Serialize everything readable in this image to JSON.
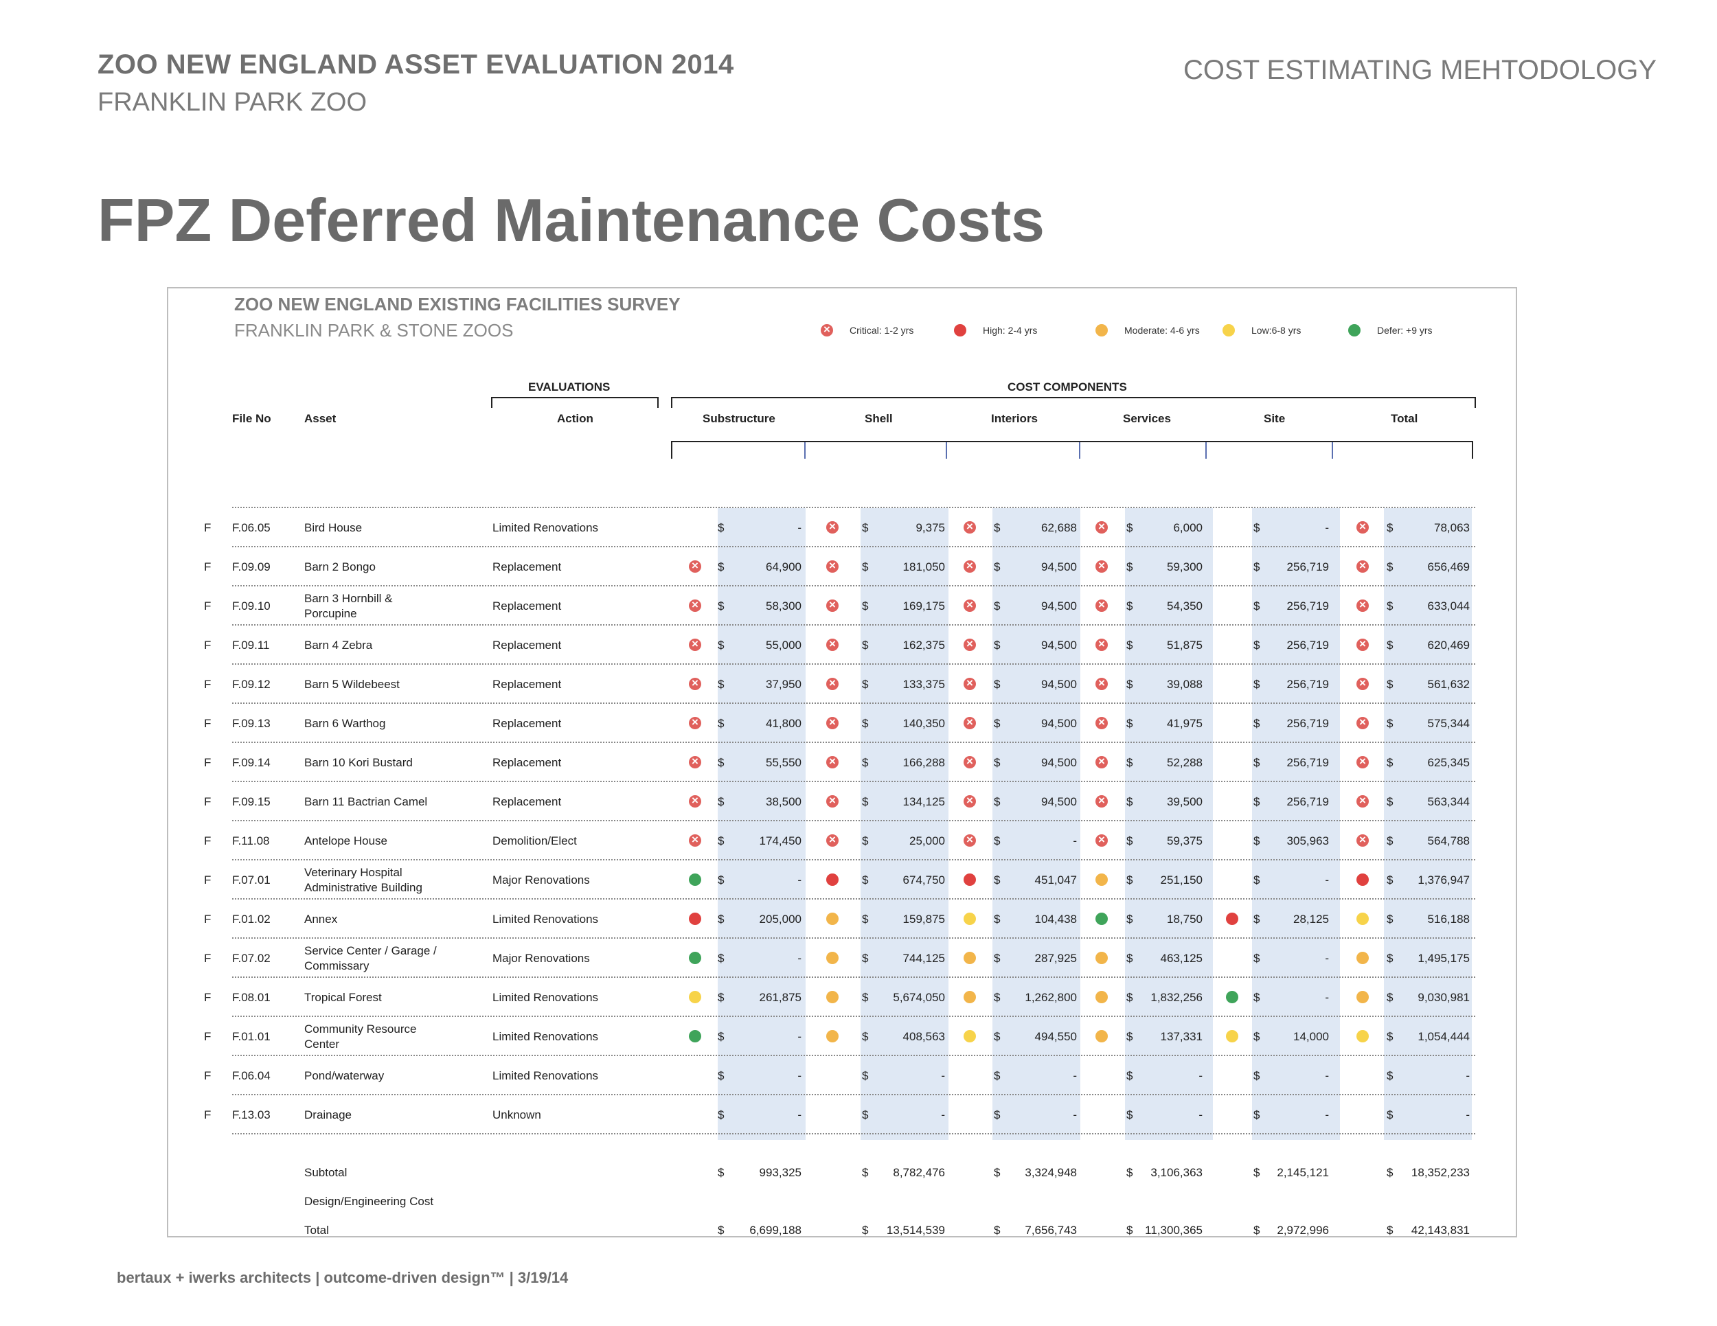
{
  "header": {
    "title": "ZOO NEW ENGLAND ASSET EVALUATION 2014",
    "subtitle": "FRANKLIN PARK ZOO",
    "right": "COST ESTIMATING MEHTODOLOGY"
  },
  "page_title": "FPZ Deferred Maintenance Costs",
  "survey": {
    "title": "ZOO NEW ENGLAND EXISTING FACILITIES SURVEY",
    "subtitle": "FRANKLIN PARK & STONE ZOOS"
  },
  "legend": [
    {
      "status": "critical",
      "label": "Critical: 1-2 yrs"
    },
    {
      "status": "high",
      "label": "High: 2-4 yrs"
    },
    {
      "status": "moderate",
      "label": "Moderate: 4-6 yrs"
    },
    {
      "status": "low",
      "label": "Low:6-8 yrs"
    },
    {
      "status": "defer",
      "label": "Defer: +9 yrs"
    }
  ],
  "groups": {
    "evaluations": "EVALUATIONS",
    "cost_components": "COST COMPONENTS"
  },
  "columns": {
    "file_no": "File No",
    "asset": "Asset",
    "action": "Action",
    "substructure": "Substructure",
    "shell": "Shell",
    "interiors": "Interiors",
    "services": "Services",
    "site": "Site",
    "total": "Total"
  },
  "currency": "$",
  "rows": [
    {
      "flag": "F",
      "file": "F.06.05",
      "asset": "Bird House",
      "action": "Limited Renovations",
      "sub": {
        "s": "",
        "v": "-"
      },
      "shell": {
        "s": "critical",
        "v": "9,375"
      },
      "int": {
        "s": "critical",
        "v": "62,688"
      },
      "svc": {
        "s": "critical",
        "v": "6,000"
      },
      "site": {
        "s": "",
        "v": "-"
      },
      "tot": {
        "s": "critical",
        "v": "78,063"
      }
    },
    {
      "flag": "F",
      "file": "F.09.09",
      "asset": "Barn 2 Bongo",
      "action": "Replacement",
      "sub": {
        "s": "critical",
        "v": "64,900"
      },
      "shell": {
        "s": "critical",
        "v": "181,050"
      },
      "int": {
        "s": "critical",
        "v": "94,500"
      },
      "svc": {
        "s": "critical",
        "v": "59,300"
      },
      "site": {
        "s": "",
        "v": "256,719"
      },
      "tot": {
        "s": "critical",
        "v": "656,469"
      }
    },
    {
      "flag": "F",
      "file": "F.09.10",
      "asset": "Barn 3 Hornbill & Porcupine",
      "action": "Replacement",
      "sub": {
        "s": "critical",
        "v": "58,300"
      },
      "shell": {
        "s": "critical",
        "v": "169,175"
      },
      "int": {
        "s": "critical",
        "v": "94,500"
      },
      "svc": {
        "s": "critical",
        "v": "54,350"
      },
      "site": {
        "s": "",
        "v": "256,719"
      },
      "tot": {
        "s": "critical",
        "v": "633,044"
      }
    },
    {
      "flag": "F",
      "file": "F.09.11",
      "asset": "Barn 4 Zebra",
      "action": "Replacement",
      "sub": {
        "s": "critical",
        "v": "55,000"
      },
      "shell": {
        "s": "critical",
        "v": "162,375"
      },
      "int": {
        "s": "critical",
        "v": "94,500"
      },
      "svc": {
        "s": "critical",
        "v": "51,875"
      },
      "site": {
        "s": "",
        "v": "256,719"
      },
      "tot": {
        "s": "critical",
        "v": "620,469"
      }
    },
    {
      "flag": "F",
      "file": "F.09.12",
      "asset": "Barn 5 Wildebeest",
      "action": "Replacement",
      "sub": {
        "s": "critical",
        "v": "37,950"
      },
      "shell": {
        "s": "critical",
        "v": "133,375"
      },
      "int": {
        "s": "critical",
        "v": "94,500"
      },
      "svc": {
        "s": "critical",
        "v": "39,088"
      },
      "site": {
        "s": "",
        "v": "256,719"
      },
      "tot": {
        "s": "critical",
        "v": "561,632"
      }
    },
    {
      "flag": "F",
      "file": "F.09.13",
      "asset": "Barn 6 Warthog",
      "action": "Replacement",
      "sub": {
        "s": "critical",
        "v": "41,800"
      },
      "shell": {
        "s": "critical",
        "v": "140,350"
      },
      "int": {
        "s": "critical",
        "v": "94,500"
      },
      "svc": {
        "s": "critical",
        "v": "41,975"
      },
      "site": {
        "s": "",
        "v": "256,719"
      },
      "tot": {
        "s": "critical",
        "v": "575,344"
      }
    },
    {
      "flag": "F",
      "file": "F.09.14",
      "asset": "Barn 10 Kori Bustard",
      "action": "Replacement",
      "sub": {
        "s": "critical",
        "v": "55,550"
      },
      "shell": {
        "s": "critical",
        "v": "166,288"
      },
      "int": {
        "s": "critical",
        "v": "94,500"
      },
      "svc": {
        "s": "critical",
        "v": "52,288"
      },
      "site": {
        "s": "",
        "v": "256,719"
      },
      "tot": {
        "s": "critical",
        "v": "625,345"
      }
    },
    {
      "flag": "F",
      "file": "F.09.15",
      "asset": "Barn 11 Bactrian Camel",
      "action": "Replacement",
      "sub": {
        "s": "critical",
        "v": "38,500"
      },
      "shell": {
        "s": "critical",
        "v": "134,125"
      },
      "int": {
        "s": "critical",
        "v": "94,500"
      },
      "svc": {
        "s": "critical",
        "v": "39,500"
      },
      "site": {
        "s": "",
        "v": "256,719"
      },
      "tot": {
        "s": "critical",
        "v": "563,344"
      }
    },
    {
      "flag": "F",
      "file": "F.11.08",
      "asset": "Antelope House",
      "action": "Demolition/Elect",
      "sub": {
        "s": "critical",
        "v": "174,450"
      },
      "shell": {
        "s": "critical",
        "v": "25,000"
      },
      "int": {
        "s": "critical",
        "v": "-"
      },
      "svc": {
        "s": "critical",
        "v": "59,375"
      },
      "site": {
        "s": "",
        "v": "305,963"
      },
      "tot": {
        "s": "critical",
        "v": "564,788"
      }
    },
    {
      "flag": "F",
      "file": "F.07.01",
      "asset": "Veterinary Hospital Administrative Building",
      "action": "Major Renovations",
      "sub": {
        "s": "defer",
        "v": "-"
      },
      "shell": {
        "s": "high",
        "v": "674,750"
      },
      "int": {
        "s": "high",
        "v": "451,047"
      },
      "svc": {
        "s": "moderate",
        "v": "251,150"
      },
      "site": {
        "s": "",
        "v": "-"
      },
      "tot": {
        "s": "high",
        "v": "1,376,947"
      }
    },
    {
      "flag": "F",
      "file": "F.01.02",
      "asset": "Annex",
      "action": "Limited Renovations",
      "sub": {
        "s": "high",
        "v": "205,000"
      },
      "shell": {
        "s": "moderate",
        "v": "159,875"
      },
      "int": {
        "s": "low",
        "v": "104,438"
      },
      "svc": {
        "s": "defer",
        "v": "18,750"
      },
      "site": {
        "s": "high",
        "v": "28,125"
      },
      "tot": {
        "s": "low",
        "v": "516,188"
      }
    },
    {
      "flag": "F",
      "file": "F.07.02",
      "asset": "Service Center / Garage / Commissary",
      "action": "Major Renovations",
      "sub": {
        "s": "defer",
        "v": "-"
      },
      "shell": {
        "s": "moderate",
        "v": "744,125"
      },
      "int": {
        "s": "moderate",
        "v": "287,925"
      },
      "svc": {
        "s": "moderate",
        "v": "463,125"
      },
      "site": {
        "s": "",
        "v": "-"
      },
      "tot": {
        "s": "moderate",
        "v": "1,495,175"
      }
    },
    {
      "flag": "F",
      "file": "F.08.01",
      "asset": "Tropical Forest",
      "action": "Limited Renovations",
      "sub": {
        "s": "low",
        "v": "261,875"
      },
      "shell": {
        "s": "moderate",
        "v": "5,674,050"
      },
      "int": {
        "s": "moderate",
        "v": "1,262,800"
      },
      "svc": {
        "s": "moderate",
        "v": "1,832,256"
      },
      "site": {
        "s": "defer",
        "v": "-"
      },
      "tot": {
        "s": "moderate",
        "v": "9,030,981"
      }
    },
    {
      "flag": "F",
      "file": "F.01.01",
      "asset": "Community Resource Center",
      "action": "Limited Renovations",
      "sub": {
        "s": "defer",
        "v": "-"
      },
      "shell": {
        "s": "moderate",
        "v": "408,563"
      },
      "int": {
        "s": "low",
        "v": "494,550"
      },
      "svc": {
        "s": "moderate",
        "v": "137,331"
      },
      "site": {
        "s": "low",
        "v": "14,000"
      },
      "tot": {
        "s": "low",
        "v": "1,054,444"
      }
    },
    {
      "flag": "F",
      "file": "F.06.04",
      "asset": "Pond/waterway",
      "action": "Limited Renovations",
      "sub": {
        "s": "",
        "v": "-"
      },
      "shell": {
        "s": "",
        "v": "-"
      },
      "int": {
        "s": "",
        "v": "-"
      },
      "svc": {
        "s": "",
        "v": "-"
      },
      "site": {
        "s": "",
        "v": "-"
      },
      "tot": {
        "s": "",
        "v": "-"
      }
    },
    {
      "flag": "F",
      "file": "F.13.03",
      "asset": "Drainage",
      "action": "Unknown",
      "sub": {
        "s": "",
        "v": "-"
      },
      "shell": {
        "s": "",
        "v": "-"
      },
      "int": {
        "s": "",
        "v": "-"
      },
      "svc": {
        "s": "",
        "v": "-"
      },
      "site": {
        "s": "",
        "v": "-"
      },
      "tot": {
        "s": "",
        "v": "-"
      }
    }
  ],
  "summary": [
    {
      "label": "Subtotal",
      "sub": "993,325",
      "shell": "8,782,476",
      "int": "3,324,948",
      "svc": "3,106,363",
      "site": "2,145,121",
      "tot": "18,352,233"
    },
    {
      "label": "Design/Engineering Cost",
      "sub": "",
      "shell": "",
      "int": "",
      "svc": "",
      "site": "",
      "tot": ""
    },
    {
      "label": "Total",
      "sub": "6,699,188",
      "shell": "13,514,539",
      "int": "7,656,743",
      "svc": "11,300,365",
      "site": "2,972,996",
      "tot": "42,143,831"
    }
  ],
  "footer": "bertaux + iwerks architects | outcome-driven design™ | 3/19/14"
}
